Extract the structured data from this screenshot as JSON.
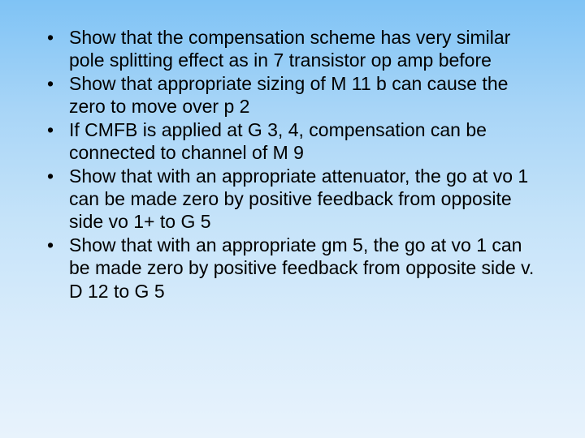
{
  "slide": {
    "background_gradient": {
      "from": "#7fc3f5",
      "to": "#e8f3fc",
      "direction": "to bottom"
    },
    "text_color": "#000000",
    "font_family": "Arial",
    "font_size_pt": 18,
    "bullets": [
      "Show that the compensation scheme has very similar pole splitting effect as in 7 transistor op amp before",
      "Show that appropriate sizing of M 11 b can cause the zero to move over p 2",
      "If CMFB is applied at G 3, 4, compensation can be connected to channel of M 9",
      "Show that with an appropriate attenuator, the go at vo 1 can be made zero by positive feedback from opposite side vo 1+ to G 5",
      "Show that with an appropriate gm 5, the go at vo 1 can be made zero by positive feedback from opposite side v. D 12 to G 5"
    ]
  }
}
